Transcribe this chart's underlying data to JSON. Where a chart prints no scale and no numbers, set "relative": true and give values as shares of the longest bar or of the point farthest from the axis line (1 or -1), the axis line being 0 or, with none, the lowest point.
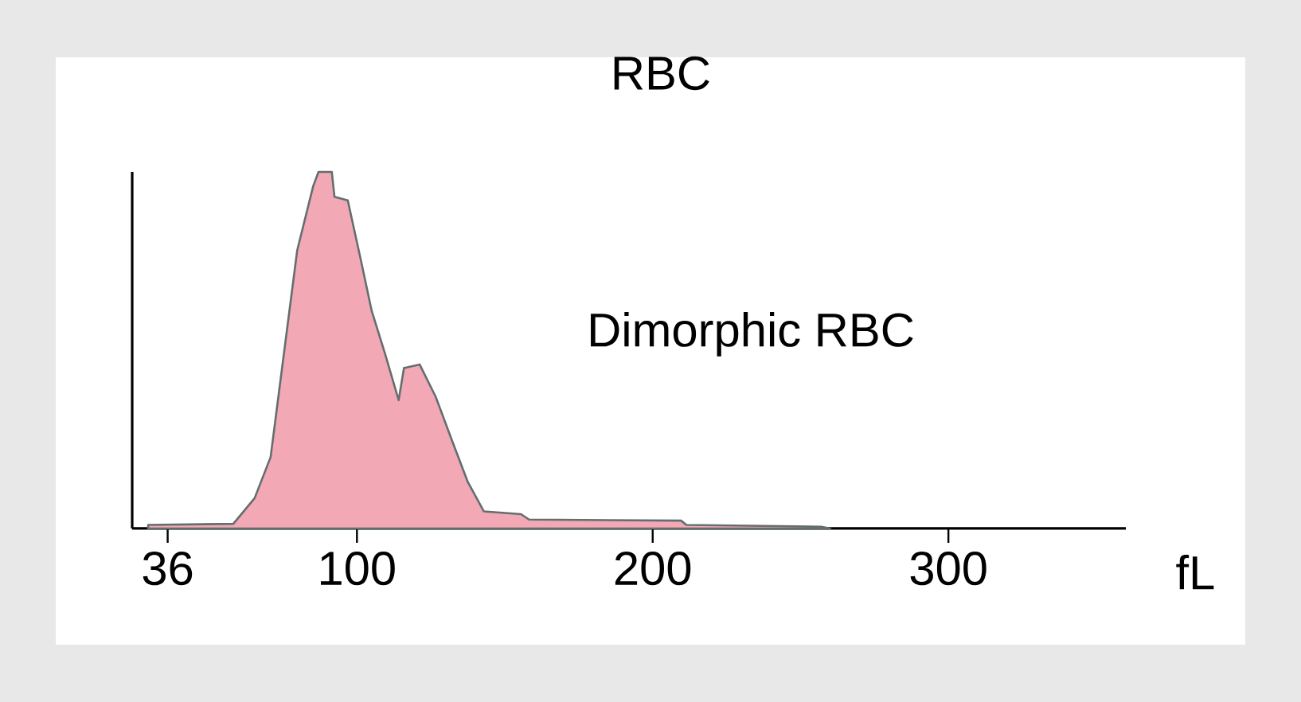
{
  "chart_data": {
    "type": "area",
    "title": "RBC",
    "annotations": [
      "Dimorphic RBC"
    ],
    "xlabel": "fL",
    "relative": true,
    "color": "#f2a8b5",
    "tick_labels": "x",
    "x": [
      29.4,
      58.2,
      65.4,
      70.8,
      75.3,
      79.8,
      85.2,
      87.0,
      91.5,
      92.4,
      96.9,
      101.4,
      105.0,
      109.5,
      114.1,
      115.9,
      121.2,
      126.6,
      132.0,
      137.5,
      142.9,
      155.5,
      158.2,
      209.6,
      211.4,
      257,
      260
    ],
    "values": [
      0.01,
      0.013,
      0.085,
      0.2,
      0.49,
      0.78,
      0.96,
      1.0,
      1.0,
      0.93,
      0.92,
      0.75,
      0.61,
      0.49,
      0.36,
      0.45,
      0.46,
      0.37,
      0.25,
      0.13,
      0.048,
      0.04,
      0.025,
      0.022,
      0.01,
      0.005,
      0
    ],
    "xlim": [
      24,
      360
    ],
    "xticks": [
      36,
      100,
      200,
      300
    ]
  }
}
